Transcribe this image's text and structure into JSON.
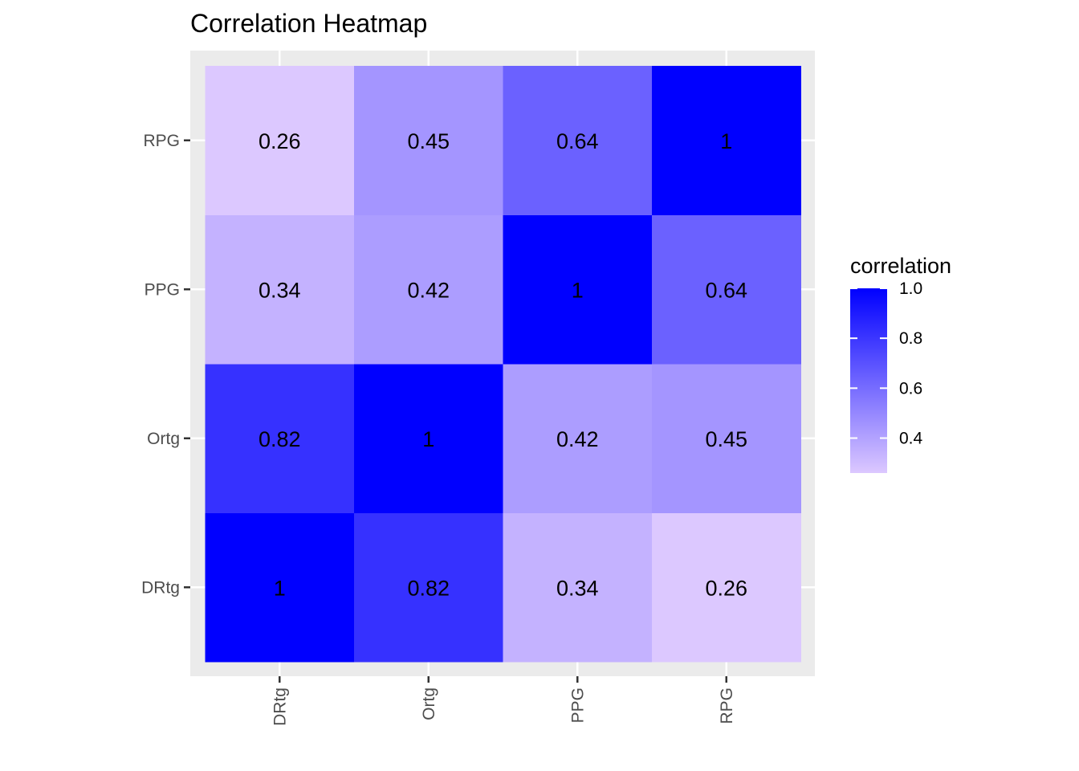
{
  "chart_data": {
    "type": "heatmap",
    "title": "Correlation Heatmap",
    "x_categories": [
      "DRtg",
      "Ortg",
      "PPG",
      "RPG"
    ],
    "y_categories": [
      "DRtg",
      "Ortg",
      "PPG",
      "RPG"
    ],
    "values": [
      [
        1,
        0.82,
        0.34,
        0.26
      ],
      [
        0.82,
        1,
        0.42,
        0.45
      ],
      [
        0.34,
        0.42,
        1,
        0.64
      ],
      [
        0.26,
        0.45,
        0.64,
        1
      ]
    ],
    "labels": [
      [
        "1",
        "0.82",
        "0.34",
        "0.26"
      ],
      [
        "0.82",
        "1",
        "0.42",
        "0.45"
      ],
      [
        "0.34",
        "0.42",
        "1",
        "0.64"
      ],
      [
        "0.26",
        "0.45",
        "0.64",
        "1"
      ]
    ],
    "legend": {
      "title": "correlation",
      "ticks": [
        {
          "value": 1.0,
          "label": "1.0"
        },
        {
          "value": 0.8,
          "label": "0.8"
        },
        {
          "value": 0.6,
          "label": "0.6"
        },
        {
          "value": 0.4,
          "label": "0.4"
        }
      ],
      "range": [
        0.26,
        1.0
      ],
      "placement": "right"
    },
    "colors": {
      "low": "#dcc8ff",
      "high": "#0000ff",
      "panel": "#ebebeb",
      "grid": "#ffffff"
    },
    "grid": true
  }
}
